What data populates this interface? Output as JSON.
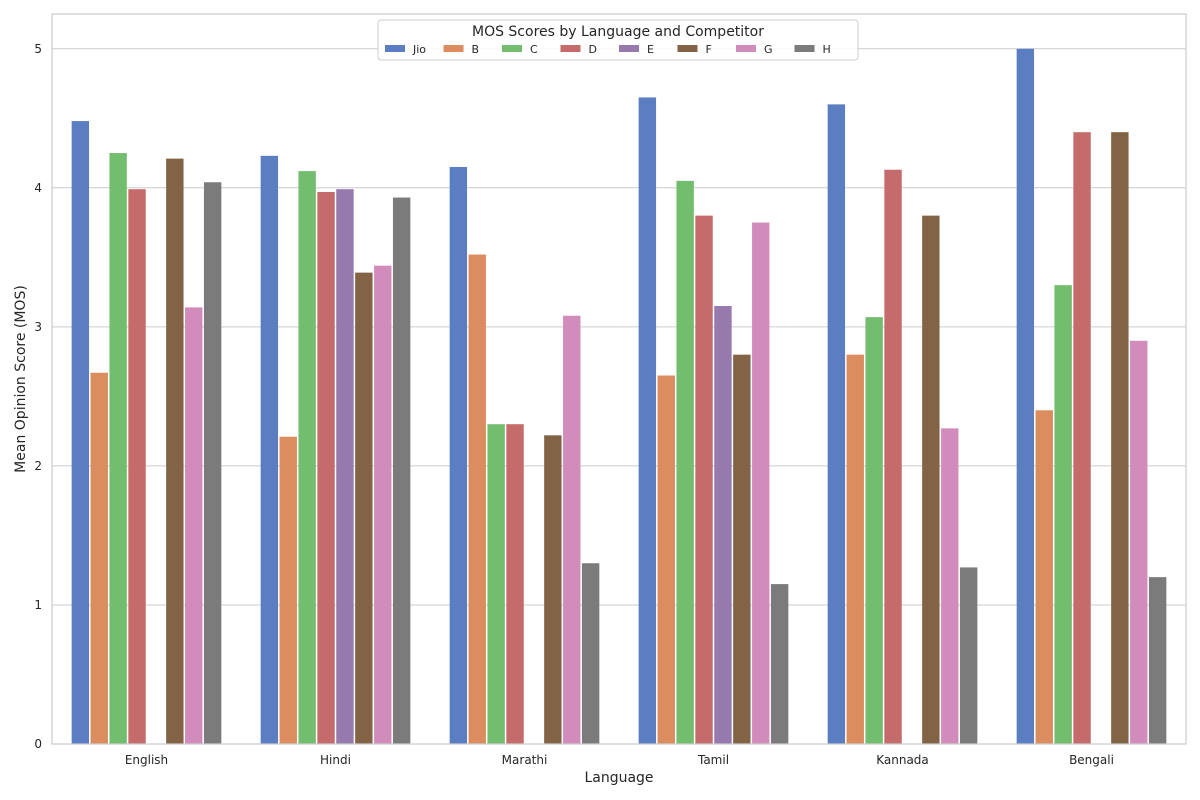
{
  "chart_data": {
    "type": "bar",
    "title": "",
    "xlabel": "Language",
    "ylabel": "Mean Opinion Score (MOS)",
    "ylim": [
      0,
      5.25
    ],
    "yticks": [
      0,
      1,
      2,
      3,
      4,
      5
    ],
    "grid": true,
    "categories": [
      "English",
      "Hindi",
      "Marathi",
      "Tamil",
      "Kannada",
      "Bengali"
    ],
    "legend": {
      "title": "MOS Scores by Language and Competitor",
      "placement": "top-center"
    },
    "series": [
      {
        "name": "Jio",
        "color": "#5a7ec1",
        "values": [
          4.48,
          4.23,
          4.15,
          4.65,
          4.6,
          5.0
        ]
      },
      {
        "name": "B",
        "color": "#db8d5f",
        "values": [
          2.67,
          2.21,
          3.52,
          2.65,
          2.8,
          2.4
        ]
      },
      {
        "name": "C",
        "color": "#73be6e",
        "values": [
          4.25,
          4.12,
          2.3,
          4.05,
          3.07,
          3.3
        ]
      },
      {
        "name": "D",
        "color": "#c66b6b",
        "values": [
          3.99,
          3.97,
          2.3,
          3.8,
          4.13,
          4.4
        ]
      },
      {
        "name": "E",
        "color": "#9679ad",
        "values": [
          null,
          3.99,
          null,
          3.15,
          null,
          null
        ]
      },
      {
        "name": "F",
        "color": "#836345",
        "values": [
          4.21,
          3.39,
          2.22,
          2.8,
          3.8,
          4.4
        ]
      },
      {
        "name": "G",
        "color": "#d28cbc",
        "values": [
          3.14,
          3.44,
          3.08,
          3.75,
          2.27,
          2.9
        ]
      },
      {
        "name": "H",
        "color": "#7b7b7b",
        "values": [
          4.04,
          3.93,
          1.3,
          1.15,
          1.27,
          1.2
        ]
      }
    ]
  }
}
